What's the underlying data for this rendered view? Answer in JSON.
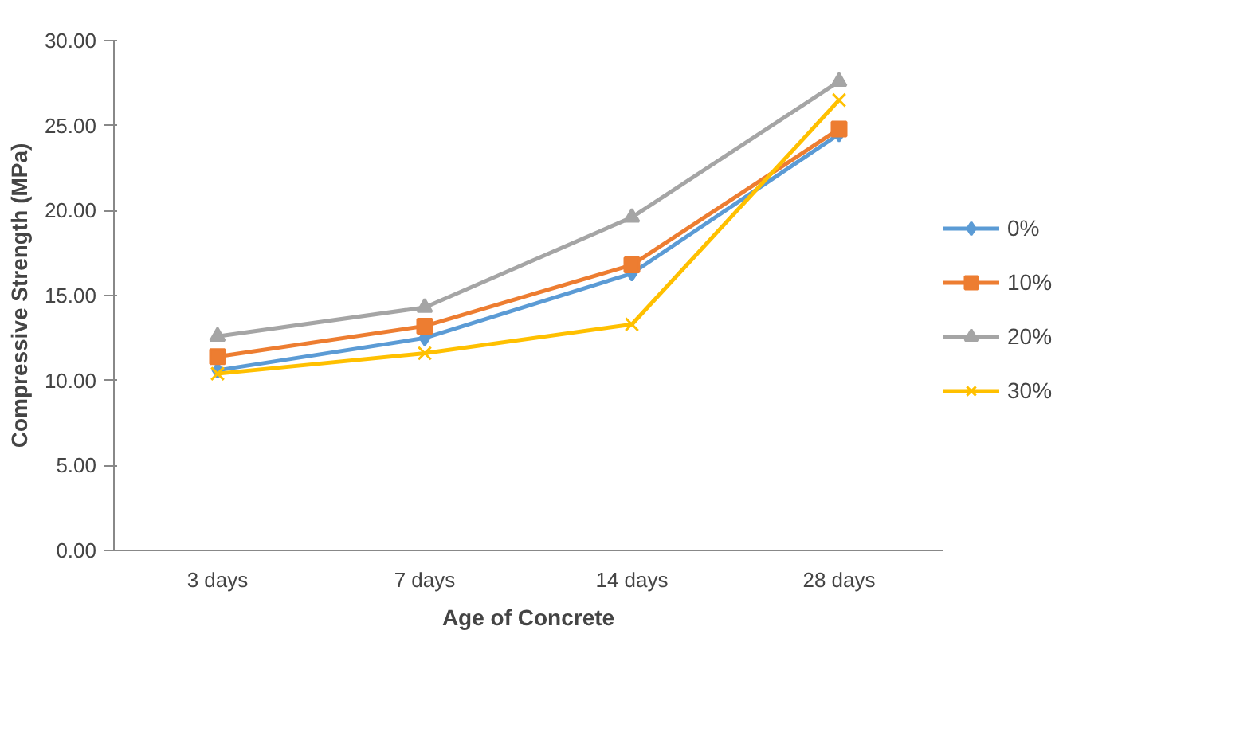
{
  "chart_data": {
    "type": "line",
    "xlabel": "Age of Concrete",
    "ylabel": "Compressive Strength (MPa)",
    "categories": [
      "3 days",
      "7 days",
      "14 days",
      "28 days"
    ],
    "series": [
      {
        "name": "0%",
        "color": "#5b9bd5",
        "marker": "diamond",
        "values": [
          10.6,
          12.5,
          16.3,
          24.5
        ]
      },
      {
        "name": "10%",
        "color": "#ed7d31",
        "marker": "square",
        "values": [
          11.4,
          13.2,
          16.8,
          24.8
        ]
      },
      {
        "name": "20%",
        "color": "#a5a5a5",
        "marker": "triangle",
        "values": [
          12.6,
          14.3,
          19.6,
          27.6
        ]
      },
      {
        "name": "30%",
        "color": "#ffc000",
        "marker": "cross",
        "values": [
          10.4,
          11.6,
          13.3,
          26.5
        ]
      }
    ],
    "ylim": [
      0,
      30
    ],
    "yticks": [
      {
        "value": 0,
        "label": "0.00"
      },
      {
        "value": 5,
        "label": "5.00"
      },
      {
        "value": 10,
        "label": "10.00"
      },
      {
        "value": 15,
        "label": "15.00"
      },
      {
        "value": 20,
        "label": "20.00"
      },
      {
        "value": 25,
        "label": "25.00"
      },
      {
        "value": 30,
        "label": "30.00"
      }
    ],
    "grid": false,
    "legend": "right",
    "line_style": "solid"
  }
}
